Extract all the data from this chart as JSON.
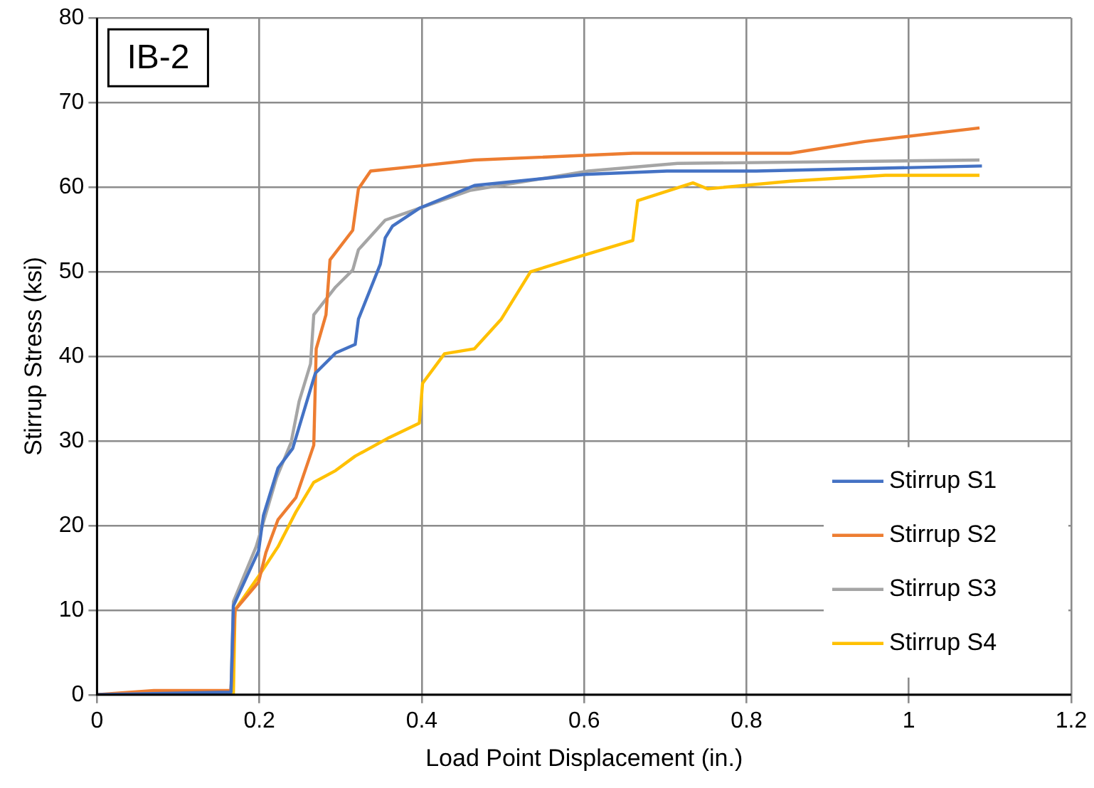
{
  "chart_data": {
    "type": "line",
    "title": "IB-2",
    "xlabel": "Load Point Displacement (in.)",
    "ylabel": "Stirrup Stress (ksi)",
    "xlim": [
      0,
      1.2
    ],
    "xticks": [
      0,
      0.2,
      0.4,
      0.6,
      0.8,
      1,
      1.2
    ],
    "ylim": [
      0,
      80
    ],
    "yticks": [
      0,
      10,
      20,
      30,
      40,
      50,
      60,
      70,
      80
    ],
    "grid": true,
    "legend": "bottom right",
    "marker": "none",
    "line_style": "solid",
    "series": [
      {
        "name": "Stirrup S1",
        "color": "#4472c4",
        "x": [
          0,
          0.165,
          0.168,
          0.199,
          0.205,
          0.223,
          0.241,
          0.267,
          0.269,
          0.294,
          0.318,
          0.322,
          0.349,
          0.355,
          0.364,
          0.397,
          0.465,
          0.6,
          0.702,
          0.812,
          1.09
        ],
        "values": [
          0,
          0.3,
          10.5,
          17,
          21.2,
          26.8,
          29.1,
          37.4,
          38,
          40.4,
          41.4,
          44.4,
          50.9,
          54,
          55.4,
          57.5,
          60.2,
          61.5,
          61.9,
          61.9,
          62.5
        ]
      },
      {
        "name": "Stirrup S2",
        "color": "#ed7d31",
        "x": [
          0,
          0.07,
          0.165,
          0.17,
          0.199,
          0.208,
          0.223,
          0.245,
          0.267,
          0.27,
          0.282,
          0.287,
          0.315,
          0.322,
          0.337,
          0.397,
          0.465,
          0.66,
          0.854,
          0.946,
          1.087
        ],
        "values": [
          0,
          0.5,
          0.5,
          10,
          13.3,
          16.8,
          20.7,
          23.3,
          29.5,
          40.9,
          44.9,
          51.4,
          54.9,
          59.8,
          61.9,
          62.5,
          63.2,
          64,
          64,
          65.4,
          67
        ]
      },
      {
        "name": "Stirrup S3",
        "color": "#a5a5a5",
        "x": [
          0,
          0.165,
          0.168,
          0.196,
          0.221,
          0.239,
          0.249,
          0.263,
          0.267,
          0.294,
          0.315,
          0.322,
          0.355,
          0.397,
          0.459,
          0.605,
          0.715,
          1.087
        ],
        "values": [
          0,
          0.3,
          11,
          17.5,
          25.6,
          29.8,
          34.7,
          39.1,
          44.9,
          48.2,
          50.2,
          52.6,
          56.1,
          57.5,
          59.6,
          61.9,
          62.8,
          63.2
        ]
      },
      {
        "name": "Stirrup S4",
        "color": "#ffc000",
        "x": [
          0,
          0.168,
          0.17,
          0.199,
          0.223,
          0.245,
          0.267,
          0.294,
          0.318,
          0.36,
          0.397,
          0.401,
          0.428,
          0.465,
          0.498,
          0.534,
          0.598,
          0.66,
          0.666,
          0.734,
          0.752,
          0.854,
          0.971,
          1.087
        ],
        "values": [
          0,
          0,
          10,
          14,
          17.5,
          21.6,
          25.1,
          26.5,
          28.2,
          30.4,
          32.1,
          36.8,
          40.3,
          40.9,
          44.4,
          50,
          51.9,
          53.7,
          58.4,
          60.5,
          59.8,
          60.7,
          61.4,
          61.4
        ]
      }
    ]
  }
}
